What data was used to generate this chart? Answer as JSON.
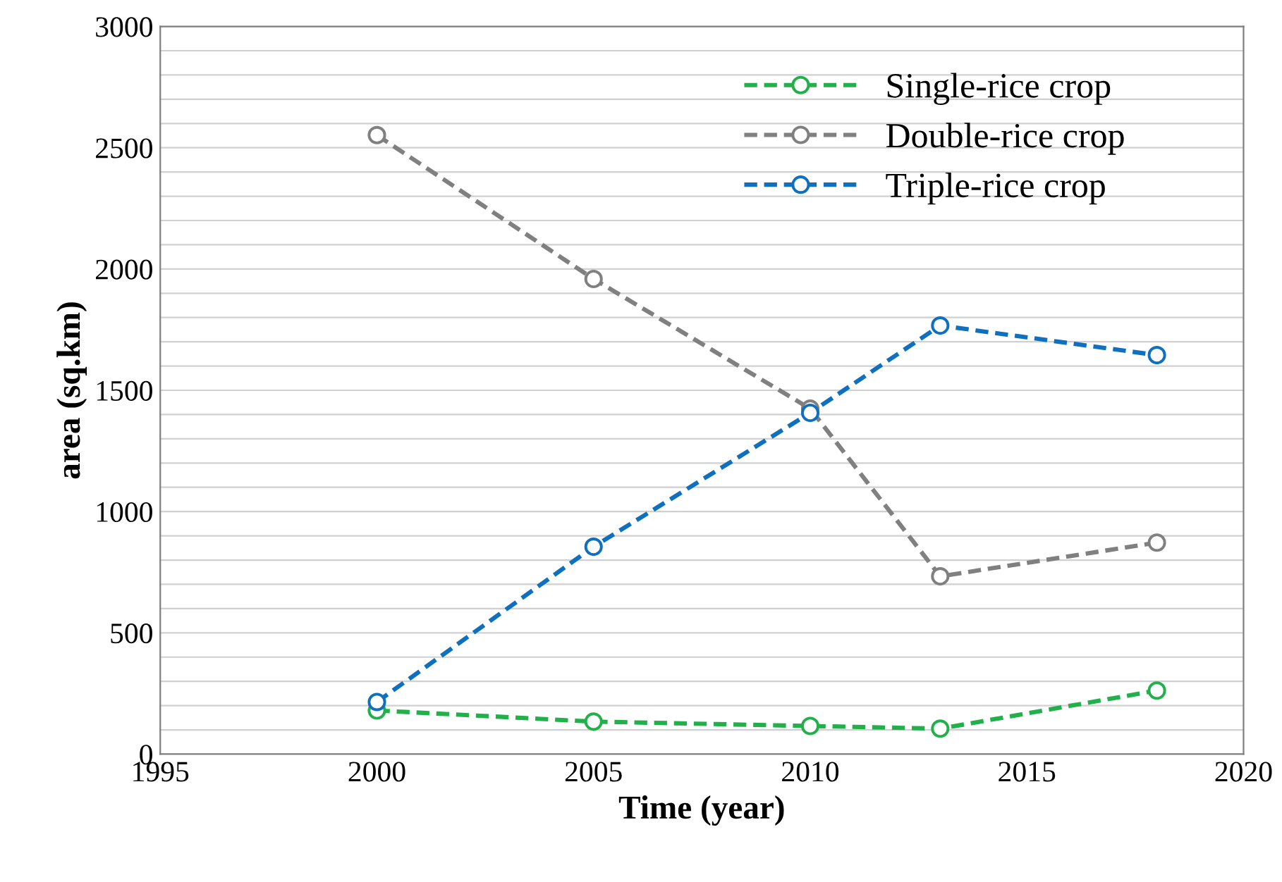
{
  "chart_data": {
    "type": "line",
    "xlabel": "Time (year)",
    "ylabel": "area (sq.km)",
    "x": [
      2000,
      2005,
      2010,
      2013,
      2018
    ],
    "series": [
      {
        "name": "Single-rice crop",
        "color": "#22b04b",
        "values": [
          180,
          134,
          116,
          105,
          262
        ]
      },
      {
        "name": "Double-rice crop",
        "color": "#808080",
        "values": [
          2552,
          1959,
          1424,
          733,
          872
        ]
      },
      {
        "name": "Triple-rice crop",
        "color": "#1070c0",
        "values": [
          215,
          855,
          1407,
          1767,
          1645
        ]
      }
    ],
    "xlim": [
      1995,
      2020
    ],
    "xticks": [
      1995,
      2000,
      2005,
      2010,
      2015,
      2020
    ],
    "ylim": [
      0,
      3000
    ],
    "yticks": [
      0,
      {
        "value": 100,
        "label": null
      },
      {
        "value": 200,
        "label": null
      },
      {
        "value": 300,
        "label": null
      },
      {
        "value": 400,
        "label": null
      },
      500,
      {
        "value": 600,
        "label": null
      },
      {
        "value": 700,
        "label": null
      },
      {
        "value": 800,
        "label": null
      },
      {
        "value": 900,
        "label": null
      },
      1000,
      {
        "value": 1100,
        "label": null
      },
      {
        "value": 1200,
        "label": null
      },
      {
        "value": 1300,
        "label": null
      },
      {
        "value": 1400,
        "label": null
      },
      1500,
      {
        "value": 1600,
        "label": null
      },
      {
        "value": 1700,
        "label": null
      },
      {
        "value": 1800,
        "label": null
      },
      {
        "value": 1900,
        "label": null
      },
      2000,
      {
        "value": 2100,
        "label": null
      },
      {
        "value": 2200,
        "label": null
      },
      {
        "value": 2300,
        "label": null
      },
      {
        "value": 2400,
        "label": null
      },
      2500,
      {
        "value": 2600,
        "label": null
      },
      {
        "value": 2700,
        "label": null
      },
      {
        "value": 2800,
        "label": null
      },
      {
        "value": 2900,
        "label": null
      },
      3000
    ],
    "grid": "y",
    "legend": "top right",
    "marker": "circle",
    "line_style": "dashed"
  }
}
